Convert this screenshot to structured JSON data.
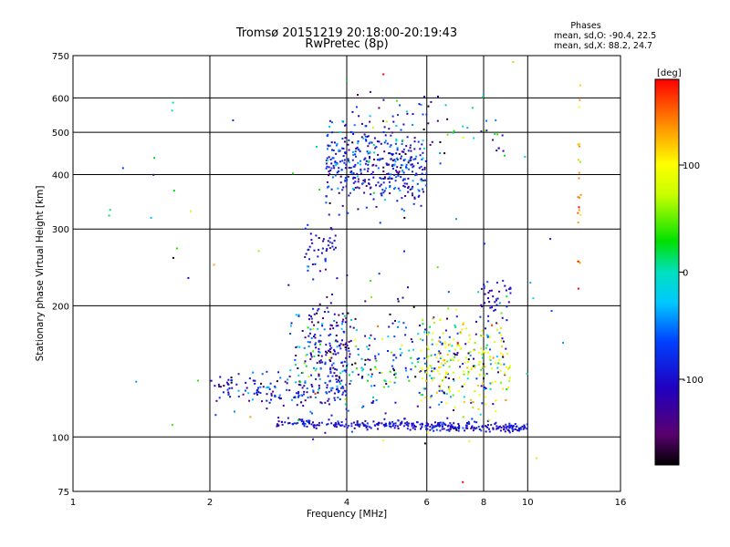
{
  "chart_data": {
    "type": "scatter",
    "title": "Tromsø 20151219 20:18:00-20:19:43",
    "subtitle": "RwPretec (8p)",
    "annotation": {
      "heading": "Phases",
      "line1": "mean, sd,O: -90.4, 22.5",
      "line2": "mean, sd,X:  88.2, 24.7"
    },
    "xlabel": "Frequency [MHz]",
    "ylabel": "Stationary phase Virtual Height [km]",
    "x_scale": "log",
    "y_scale": "log",
    "xlim": [
      1,
      16
    ],
    "ylim": [
      75,
      750
    ],
    "x_ticks": [
      1,
      2,
      4,
      6,
      8,
      10,
      16
    ],
    "x_tick_labels": [
      "1",
      "2",
      "4",
      "6",
      "8",
      "10",
      "16"
    ],
    "y_ticks": [
      75,
      100,
      200,
      300,
      400,
      500,
      600,
      750
    ],
    "y_tick_labels": [
      "75",
      "100",
      "200",
      "300",
      "400",
      "500",
      "600",
      "750"
    ],
    "grid": true,
    "colorbar": {
      "label": "[deg]",
      "range": [
        -180,
        180
      ],
      "ticks": [
        -100,
        0,
        100
      ],
      "tick_labels": [
        "-100",
        "0",
        "100"
      ],
      "colormap": "rainbow"
    },
    "seed": 20151219,
    "clusters": [
      {
        "name": "E-layer trace",
        "x_range": [
          2.8,
          10.0
        ],
        "y_center": 108,
        "y_spread": 0.012,
        "n": 330,
        "phase_mean": -100,
        "phase_sd": 18,
        "y_slope": -0.03
      },
      {
        "name": "F2 trace upper",
        "x_range": [
          3.6,
          6.0
        ],
        "y_center": 420,
        "y_spread": 0.12,
        "n": 420,
        "phase_mean": -90,
        "phase_sd": 35
      },
      {
        "name": "F2 scattered top",
        "x_range": [
          4.0,
          9.0
        ],
        "y_center": 500,
        "y_spread": 0.14,
        "n": 70,
        "phase_mean": -60,
        "phase_sd": 70
      },
      {
        "name": "F1 scatter low freq",
        "x_range": [
          2.0,
          4.0
        ],
        "y_center": 128,
        "y_spread": 0.05,
        "n": 160,
        "phase_mean": -95,
        "phase_sd": 35
      },
      {
        "name": "F1 diffuse",
        "x_range": [
          3.0,
          9.0
        ],
        "y_center": 150,
        "y_spread": 0.15,
        "n": 360,
        "phase_mean": -60,
        "phase_sd": 75
      },
      {
        "name": "X mode 6-9 MHz",
        "x_range": [
          5.8,
          9.2
        ],
        "y_center": 150,
        "y_spread": 0.13,
        "n": 170,
        "phase_mean": 90,
        "phase_sd": 25
      },
      {
        "name": "Spread F mid",
        "x_range": [
          3.2,
          3.8
        ],
        "y_center": 265,
        "y_spread": 0.07,
        "n": 45,
        "phase_mean": -100,
        "phase_sd": 25
      },
      {
        "name": "Column 3.4-4 MHz",
        "x_range": [
          3.3,
          4.1
        ],
        "y_center": 165,
        "y_spread": 0.12,
        "n": 120,
        "phase_mean": -110,
        "phase_sd": 30
      },
      {
        "name": "Edge 8-9 MHz",
        "x_range": [
          7.9,
          9.2
        ],
        "y_center": 205,
        "y_spread": 0.06,
        "n": 40,
        "phase_mean": -100,
        "phase_sd": 25
      },
      {
        "name": "Column 13 MHz",
        "x_range": [
          12.9,
          13.1
        ],
        "y_center": 380,
        "y_spread": 0.3,
        "n": 22,
        "phase_mean": 130,
        "phase_sd": 30
      },
      {
        "name": "Sparse noise",
        "x_range": [
          1.2,
          12.0
        ],
        "y_center": 200,
        "y_spread": 0.6,
        "n": 60,
        "phase_mean": 0,
        "phase_sd": 110
      }
    ]
  }
}
